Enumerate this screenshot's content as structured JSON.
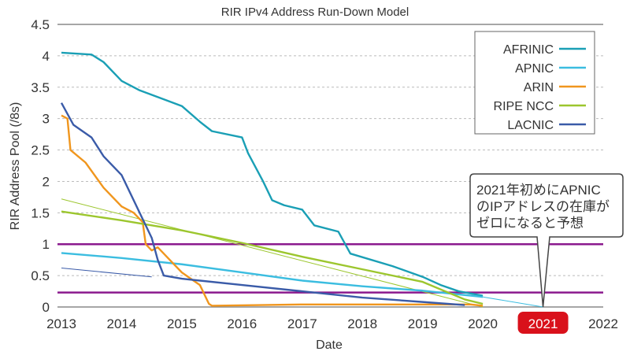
{
  "chart_data": {
    "type": "line",
    "title": "RIR IPv4 Address Run-Down Model",
    "xlabel": "Date",
    "ylabel": "RIR Address Pool (/8s)",
    "xlim": [
      2013,
      2022
    ],
    "ylim": [
      0,
      4.5
    ],
    "xticks": [
      "2013",
      "2014",
      "2015",
      "2016",
      "2017",
      "2018",
      "2019",
      "2020",
      "2021",
      "2022"
    ],
    "yticks": [
      "0",
      "0.5",
      "1",
      "1.5",
      "2",
      "2.5",
      "3",
      "3.5",
      "4",
      "4.5"
    ],
    "grid": "horizontal dashed",
    "legend_position": "top-right",
    "highlighted_xtick": "2021",
    "highlight_color": "#d9111b",
    "reference_lines": [
      {
        "y": 1.0,
        "color": "#8b1a8e"
      },
      {
        "y": 0.23,
        "color": "#8b1a8e"
      }
    ],
    "annotation": {
      "lines": [
        "2021年初めにAPNIC",
        "のIPアドレスの在庫が",
        "ゼロになると予想"
      ],
      "points_to": [
        2021,
        0
      ]
    },
    "series": [
      {
        "name": "AFRINIC",
        "color": "#1a9fb5",
        "points": [
          [
            2013,
            4.05
          ],
          [
            2013.5,
            4.02
          ],
          [
            2013.7,
            3.9
          ],
          [
            2014,
            3.6
          ],
          [
            2014.3,
            3.45
          ],
          [
            2015,
            3.2
          ],
          [
            2015.3,
            2.95
          ],
          [
            2015.5,
            2.8
          ],
          [
            2016,
            2.7
          ],
          [
            2016.1,
            2.45
          ],
          [
            2016.35,
            2.0
          ],
          [
            2016.5,
            1.7
          ],
          [
            2016.7,
            1.62
          ],
          [
            2017,
            1.55
          ],
          [
            2017.2,
            1.3
          ],
          [
            2017.6,
            1.2
          ],
          [
            2017.8,
            0.85
          ],
          [
            2018.5,
            0.65
          ],
          [
            2019,
            0.48
          ],
          [
            2019.3,
            0.35
          ],
          [
            2019.6,
            0.25
          ],
          [
            2020,
            0.18
          ]
        ]
      },
      {
        "name": "APNIC",
        "color": "#3bbde0",
        "points": [
          [
            2013,
            0.86
          ],
          [
            2014,
            0.78
          ],
          [
            2015,
            0.68
          ],
          [
            2016,
            0.55
          ],
          [
            2017,
            0.42
          ],
          [
            2018,
            0.33
          ],
          [
            2019,
            0.26
          ],
          [
            2020,
            0.16
          ]
        ],
        "projection": [
          [
            2020,
            0.16
          ],
          [
            2021,
            0
          ]
        ]
      },
      {
        "name": "ARIN",
        "color": "#f0961e",
        "points": [
          [
            2013,
            3.05
          ],
          [
            2013.1,
            3.0
          ],
          [
            2013.15,
            2.5
          ],
          [
            2013.4,
            2.3
          ],
          [
            2013.7,
            1.9
          ],
          [
            2014,
            1.6
          ],
          [
            2014.2,
            1.5
          ],
          [
            2014.35,
            1.35
          ],
          [
            2014.4,
            1.0
          ],
          [
            2014.5,
            0.9
          ],
          [
            2014.6,
            0.95
          ],
          [
            2014.8,
            0.75
          ],
          [
            2015,
            0.55
          ],
          [
            2015.3,
            0.35
          ],
          [
            2015.45,
            0.05
          ],
          [
            2015.5,
            0.02
          ],
          [
            2017,
            0.04
          ],
          [
            2019.8,
            0.04
          ],
          [
            2020,
            0.02
          ]
        ]
      },
      {
        "name": "RIPE NCC",
        "color": "#9cc62e",
        "points": [
          [
            2013,
            1.52
          ],
          [
            2014,
            1.38
          ],
          [
            2015,
            1.22
          ],
          [
            2016,
            1.02
          ],
          [
            2017,
            0.8
          ],
          [
            2018,
            0.6
          ],
          [
            2019,
            0.4
          ],
          [
            2019.7,
            0.12
          ],
          [
            2020,
            0.05
          ]
        ],
        "projection": [
          [
            2013,
            1.72
          ],
          [
            2020,
            0
          ]
        ]
      },
      {
        "name": "LACNIC",
        "color": "#3a5ba8",
        "points": [
          [
            2013,
            3.25
          ],
          [
            2013.2,
            2.9
          ],
          [
            2013.5,
            2.7
          ],
          [
            2013.7,
            2.4
          ],
          [
            2014,
            2.1
          ],
          [
            2014.3,
            1.5
          ],
          [
            2014.5,
            1.1
          ],
          [
            2014.6,
            0.75
          ],
          [
            2014.7,
            0.5
          ],
          [
            2015,
            0.45
          ],
          [
            2016,
            0.35
          ],
          [
            2017,
            0.25
          ],
          [
            2018,
            0.15
          ],
          [
            2019,
            0.08
          ],
          [
            2019.7,
            0.03
          ]
        ],
        "projection": [
          [
            2013,
            0.62
          ],
          [
            2014.5,
            0.48
          ]
        ]
      }
    ]
  }
}
